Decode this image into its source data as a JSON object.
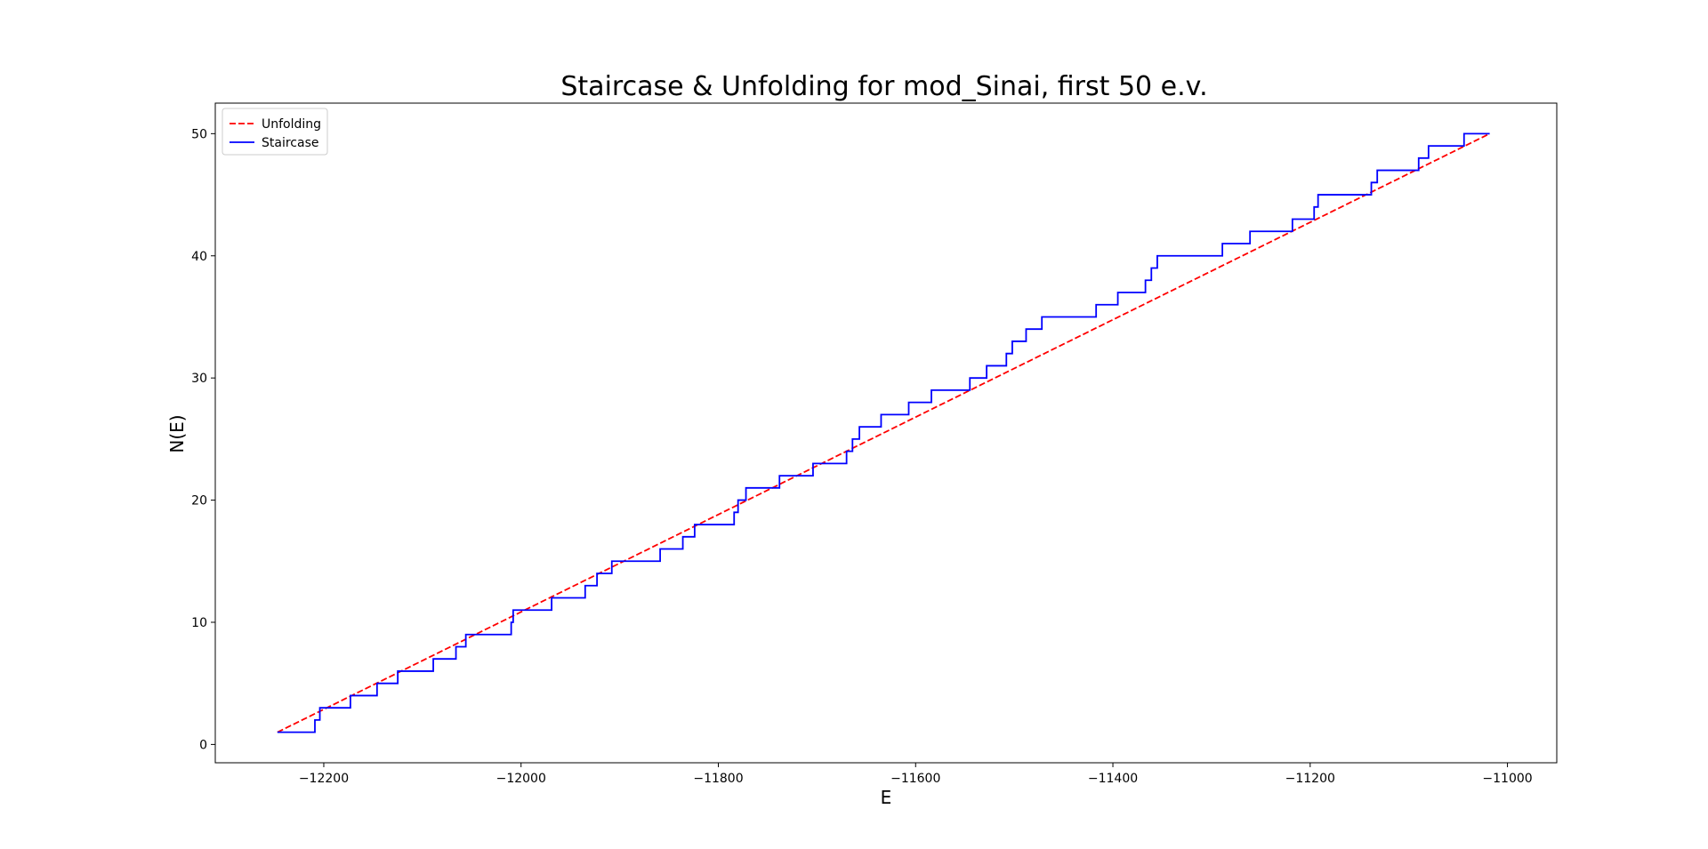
{
  "chart_data": {
    "type": "line",
    "title": "Staircase & Unfolding for mod_Sinai, first 50 e.v.",
    "xlabel": "E",
    "ylabel": "N(E)",
    "xlim": [
      -12310,
      -10950
    ],
    "ylim": [
      -1.5,
      52.5
    ],
    "xticks": [
      -12200,
      -12000,
      -11800,
      -11600,
      -11400,
      -11200,
      -11000
    ],
    "xtick_labels": [
      "−12200",
      "−12000",
      "−11800",
      "−11600",
      "−11400",
      "−11200",
      "−11000"
    ],
    "yticks": [
      0,
      10,
      20,
      30,
      40,
      50
    ],
    "ytick_labels": [
      "0",
      "10",
      "20",
      "30",
      "40",
      "50"
    ],
    "grid": false,
    "legend_position": "upper-left",
    "series": [
      {
        "name": "Unfolding",
        "color": "#ff0000",
        "style": "dashed",
        "x": [
          -12247,
          -11018
        ],
        "y": [
          1,
          50
        ]
      },
      {
        "name": "Staircase",
        "color": "#0000ff",
        "style": "steps-post",
        "x": [
          -12247,
          -12209,
          -12204,
          -12173,
          -12146,
          -12125,
          -12089,
          -12066,
          -12056,
          -12010,
          -12008,
          -11969,
          -11935,
          -11923,
          -11908,
          -11859,
          -11836,
          -11824,
          -11784,
          -11780,
          -11772,
          -11738,
          -11704,
          -11670,
          -11664,
          -11657,
          -11635,
          -11607,
          -11584,
          -11545,
          -11528,
          -11508,
          -11502,
          -11488,
          -11472,
          -11417,
          -11395,
          -11367,
          -11361,
          -11355,
          -11328,
          -11289,
          -11261,
          -11218,
          -11196,
          -11192,
          -11138,
          -11132,
          -11090,
          -11080,
          -11064,
          -11044,
          -11018
        ],
        "y": [
          1,
          2,
          3,
          4,
          5,
          6,
          7,
          8,
          9,
          10,
          11,
          12,
          13,
          14,
          15,
          16,
          17,
          18,
          19,
          20,
          21,
          22,
          23,
          24,
          25,
          26,
          27,
          28,
          29,
          30,
          31,
          32,
          33,
          34,
          35,
          36,
          37,
          38,
          39,
          40,
          40,
          41,
          42,
          43,
          44,
          45,
          46,
          47,
          48,
          49,
          49,
          50,
          50
        ]
      }
    ]
  }
}
